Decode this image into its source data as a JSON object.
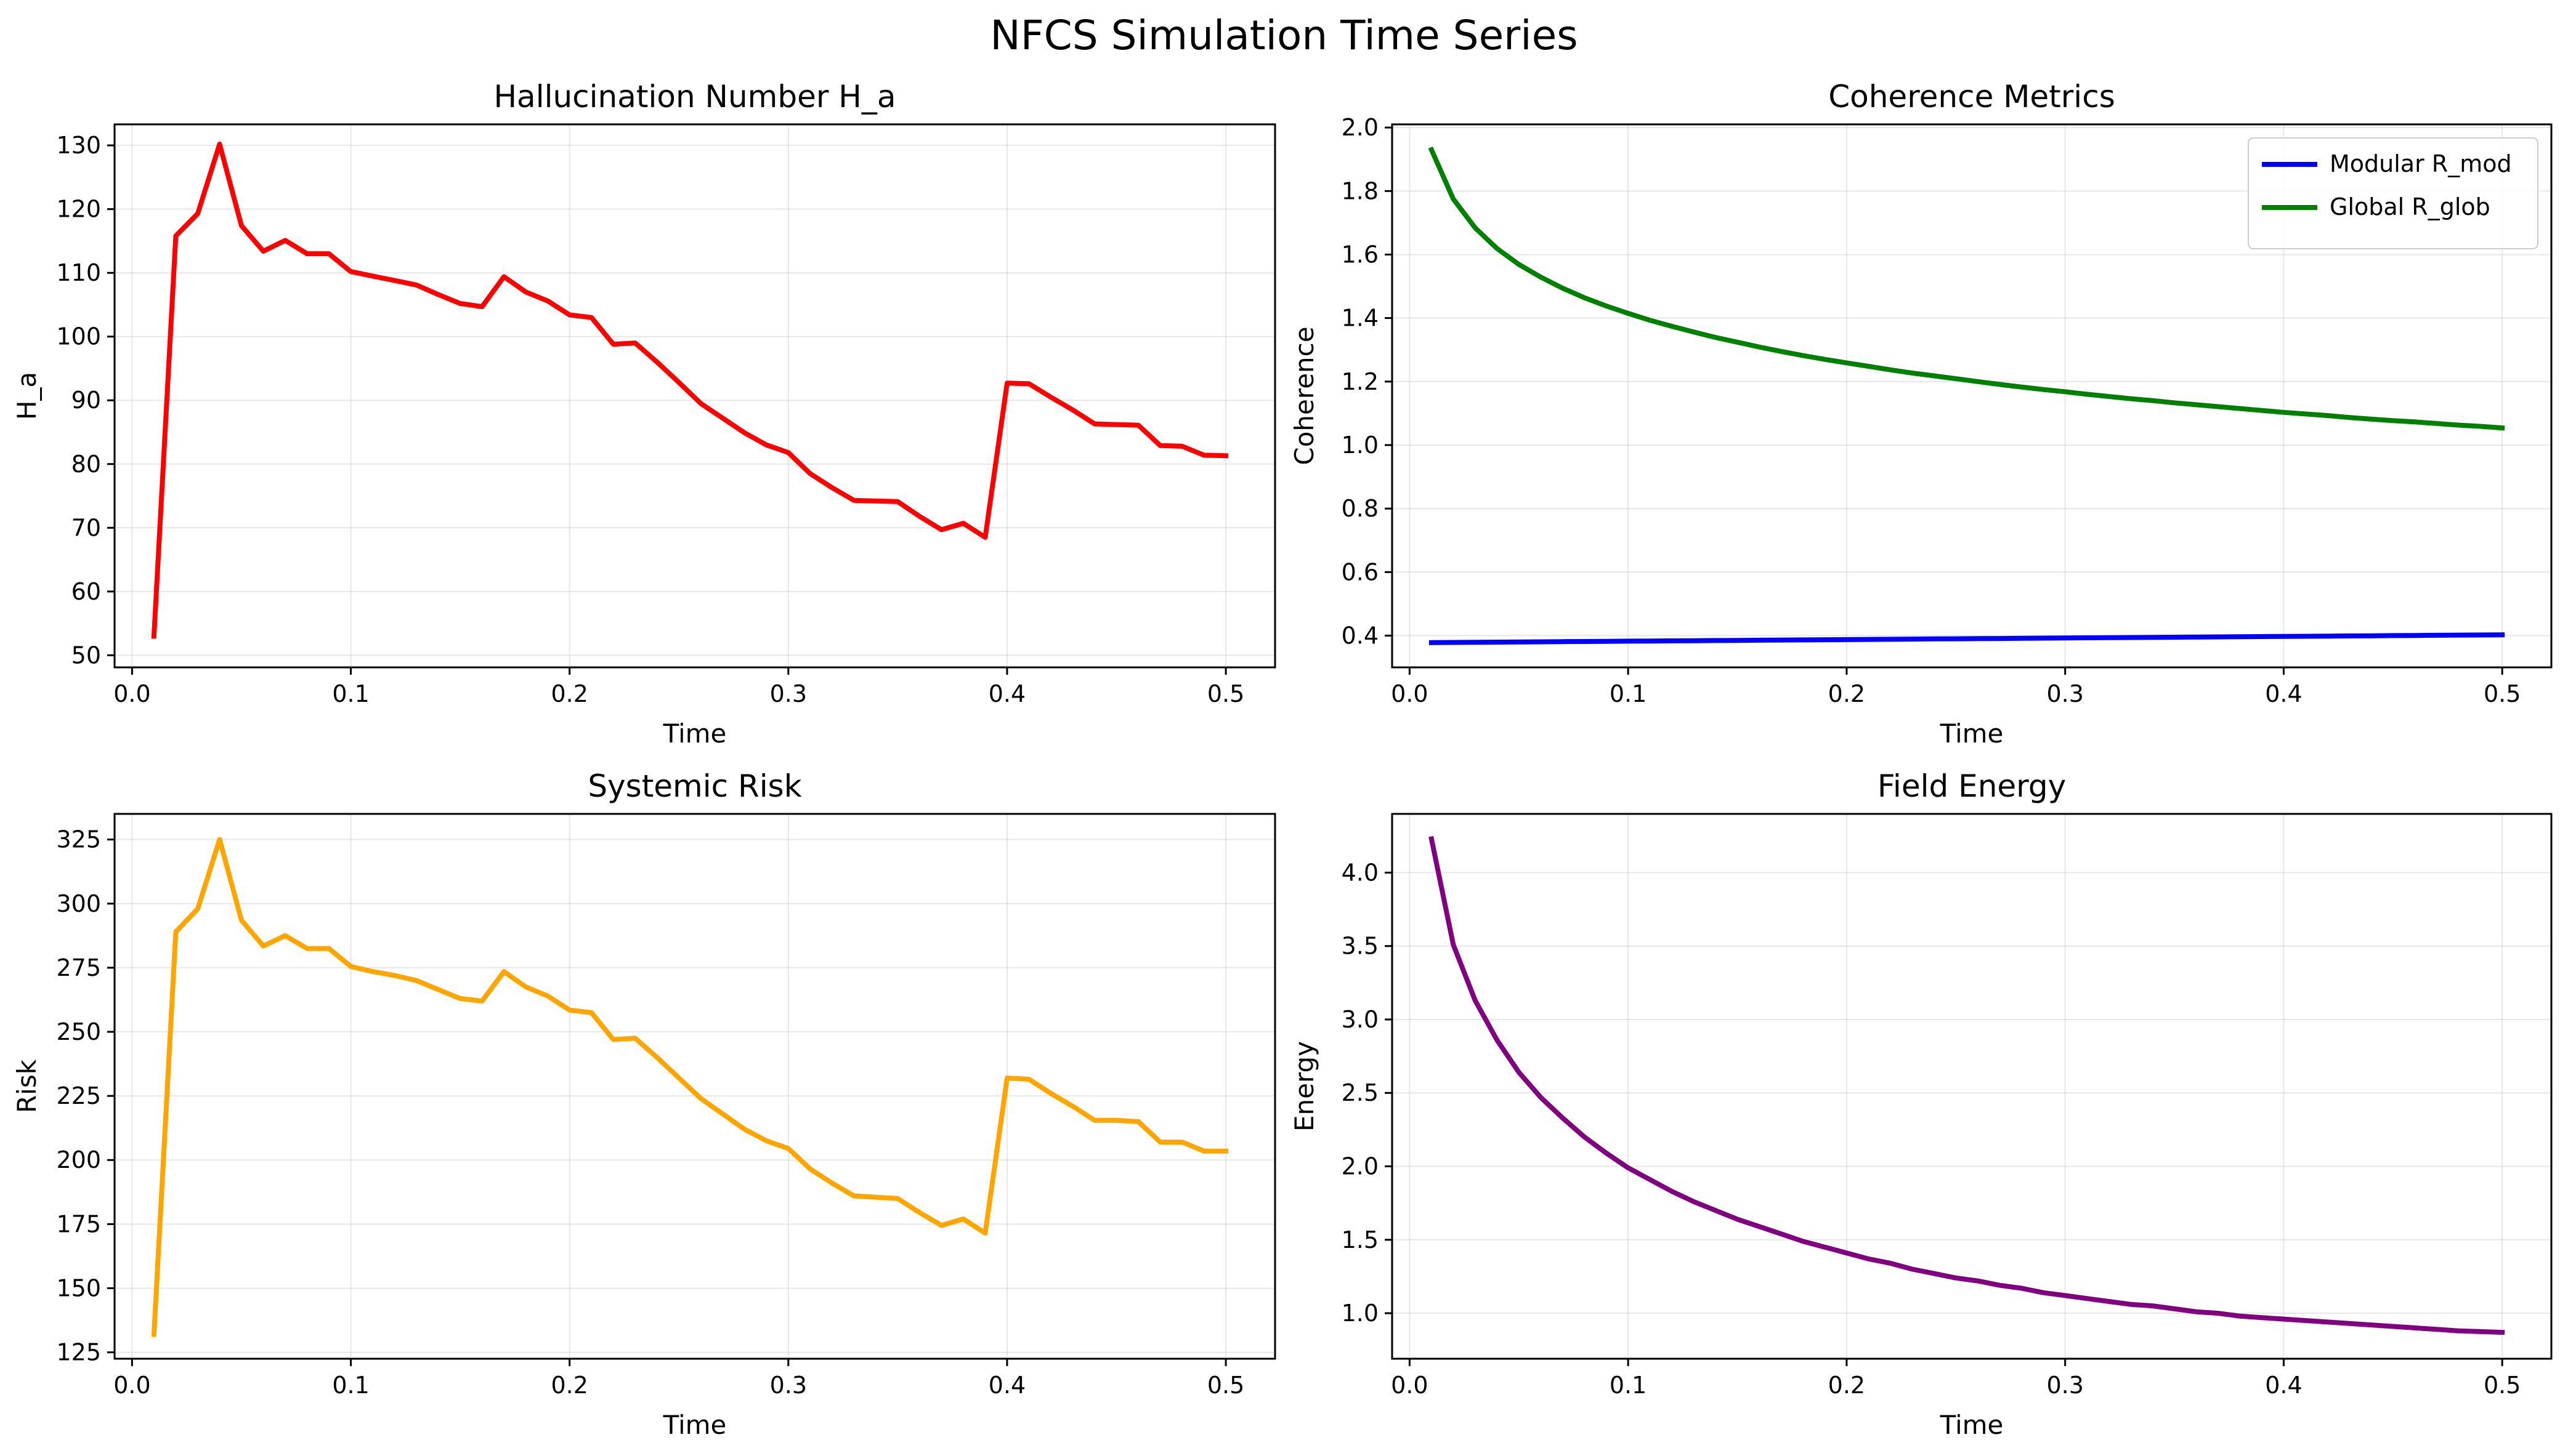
{
  "figure": {
    "title": "NFCS Simulation Time Series"
  },
  "chart_data": [
    {
      "type": "line",
      "title": "Hallucination Number H_a",
      "xlabel": "Time",
      "ylabel": "H_a",
      "xlim": [
        -0.008,
        0.5225
      ],
      "ylim": [
        48.1,
        133.3
      ],
      "xticks": [
        0.0,
        0.1,
        0.2,
        0.3,
        0.4,
        0.5
      ],
      "xtick_labels": [
        "0.0",
        "0.1",
        "0.2",
        "0.3",
        "0.4",
        "0.5"
      ],
      "yticks": [
        50,
        60,
        70,
        80,
        90,
        100,
        110,
        120,
        130
      ],
      "ytick_labels": [
        "50",
        "60",
        "70",
        "80",
        "90",
        "100",
        "110",
        "120",
        "130"
      ],
      "grid": true,
      "series": [
        {
          "color": "#ff0000",
          "x": [
            0.01,
            0.02,
            0.03,
            0.04,
            0.05,
            0.06,
            0.07,
            0.08,
            0.09,
            0.1,
            0.11,
            0.12,
            0.13,
            0.14,
            0.15,
            0.16,
            0.17,
            0.18,
            0.19,
            0.2,
            0.21,
            0.22,
            0.23,
            0.24,
            0.25,
            0.26,
            0.27,
            0.28,
            0.29,
            0.3,
            0.31,
            0.32,
            0.33,
            0.34,
            0.35,
            0.36,
            0.37,
            0.38,
            0.39,
            0.4,
            0.41,
            0.42,
            0.43,
            0.44,
            0.45,
            0.46,
            0.47,
            0.48,
            0.49,
            0.5
          ],
          "y": [
            53.0,
            115.8,
            119.3,
            130.2,
            117.4,
            113.4,
            115.1,
            113.0,
            113.0,
            110.2,
            109.5,
            108.8,
            108.1,
            106.6,
            105.2,
            104.7,
            109.4,
            107.0,
            105.6,
            103.4,
            103.0,
            98.8,
            99.0,
            96.0,
            92.8,
            89.5,
            87.2,
            84.9,
            83.0,
            81.8,
            78.5,
            76.3,
            74.3,
            74.2,
            74.1,
            71.8,
            69.7,
            70.7,
            68.5,
            92.7,
            92.6,
            90.5,
            88.5,
            86.3,
            86.2,
            86.1,
            82.9,
            82.8,
            81.4,
            81.3
          ]
        }
      ]
    },
    {
      "type": "line",
      "title": "Coherence Metrics",
      "xlabel": "Time",
      "ylabel": "Coherence",
      "xlim": [
        -0.008,
        0.5225
      ],
      "ylim": [
        0.3,
        2.01
      ],
      "xticks": [
        0.0,
        0.1,
        0.2,
        0.3,
        0.4,
        0.5
      ],
      "xtick_labels": [
        "0.0",
        "0.1",
        "0.2",
        "0.3",
        "0.4",
        "0.5"
      ],
      "yticks": [
        0.4,
        0.6,
        0.8,
        1.0,
        1.2,
        1.4,
        1.6,
        1.8,
        2.0
      ],
      "ytick_labels": [
        "0.4",
        "0.6",
        "0.8",
        "1.0",
        "1.2",
        "1.4",
        "1.6",
        "1.8",
        "2.0"
      ],
      "grid": true,
      "legend": "top-right",
      "series": [
        {
          "name": "Modular R_mod",
          "color": "#0000ff",
          "x": [
            0.01,
            0.02,
            0.03,
            0.04,
            0.05,
            0.06,
            0.07,
            0.08,
            0.09,
            0.1,
            0.11,
            0.12,
            0.13,
            0.14,
            0.15,
            0.16,
            0.17,
            0.18,
            0.19,
            0.2,
            0.21,
            0.22,
            0.23,
            0.24,
            0.25,
            0.26,
            0.27,
            0.28,
            0.29,
            0.3,
            0.31,
            0.32,
            0.33,
            0.34,
            0.35,
            0.36,
            0.37,
            0.38,
            0.39,
            0.4,
            0.41,
            0.42,
            0.43,
            0.44,
            0.45,
            0.46,
            0.47,
            0.48,
            0.49,
            0.5
          ],
          "y": [
            0.378,
            0.3785,
            0.379,
            0.3795,
            0.38,
            0.3805,
            0.381,
            0.3815,
            0.382,
            0.3825,
            0.383,
            0.3835,
            0.384,
            0.3845,
            0.385,
            0.3855,
            0.386,
            0.3865,
            0.387,
            0.3875,
            0.388,
            0.3885,
            0.389,
            0.3895,
            0.39,
            0.3905,
            0.391,
            0.3915,
            0.392,
            0.3925,
            0.393,
            0.3935,
            0.394,
            0.3945,
            0.395,
            0.3955,
            0.396,
            0.3965,
            0.397,
            0.3975,
            0.398,
            0.3985,
            0.399,
            0.3995,
            0.4,
            0.4005,
            0.401,
            0.4015,
            0.402,
            0.4025
          ]
        },
        {
          "name": "Global R_glob",
          "color": "#008000",
          "x": [
            0.01,
            0.02,
            0.03,
            0.04,
            0.05,
            0.06,
            0.07,
            0.08,
            0.09,
            0.1,
            0.11,
            0.12,
            0.13,
            0.14,
            0.15,
            0.16,
            0.17,
            0.18,
            0.19,
            0.2,
            0.21,
            0.22,
            0.23,
            0.24,
            0.25,
            0.26,
            0.27,
            0.28,
            0.29,
            0.3,
            0.31,
            0.32,
            0.33,
            0.34,
            0.35,
            0.36,
            0.37,
            0.38,
            0.39,
            0.4,
            0.41,
            0.42,
            0.43,
            0.44,
            0.45,
            0.46,
            0.47,
            0.48,
            0.49,
            0.5
          ],
          "y": [
            1.93,
            1.775,
            1.684,
            1.619,
            1.569,
            1.529,
            1.494,
            1.464,
            1.438,
            1.415,
            1.393,
            1.374,
            1.356,
            1.339,
            1.324,
            1.309,
            1.295,
            1.282,
            1.27,
            1.259,
            1.248,
            1.237,
            1.227,
            1.218,
            1.209,
            1.2,
            1.191,
            1.183,
            1.175,
            1.168,
            1.16,
            1.153,
            1.146,
            1.14,
            1.133,
            1.127,
            1.121,
            1.115,
            1.109,
            1.103,
            1.098,
            1.093,
            1.087,
            1.082,
            1.077,
            1.073,
            1.068,
            1.063,
            1.059,
            1.054
          ]
        }
      ]
    },
    {
      "type": "line",
      "title": "Systemic Risk",
      "xlabel": "Time",
      "ylabel": "Risk",
      "xlim": [
        -0.008,
        0.5225
      ],
      "ylim": [
        122.5,
        335.0
      ],
      "xticks": [
        0.0,
        0.1,
        0.2,
        0.3,
        0.4,
        0.5
      ],
      "xtick_labels": [
        "0.0",
        "0.1",
        "0.2",
        "0.3",
        "0.4",
        "0.5"
      ],
      "yticks": [
        125,
        150,
        175,
        200,
        225,
        250,
        275,
        300,
        325
      ],
      "ytick_labels": [
        "125",
        "150",
        "175",
        "200",
        "225",
        "250",
        "275",
        "300",
        "325"
      ],
      "grid": true,
      "series": [
        {
          "color": "#ffa500",
          "x": [
            0.01,
            0.02,
            0.03,
            0.04,
            0.05,
            0.06,
            0.07,
            0.08,
            0.09,
            0.1,
            0.11,
            0.12,
            0.13,
            0.14,
            0.15,
            0.16,
            0.17,
            0.18,
            0.19,
            0.2,
            0.21,
            0.22,
            0.23,
            0.24,
            0.25,
            0.26,
            0.27,
            0.28,
            0.29,
            0.3,
            0.31,
            0.32,
            0.33,
            0.34,
            0.35,
            0.36,
            0.37,
            0.38,
            0.39,
            0.4,
            0.41,
            0.42,
            0.43,
            0.44,
            0.45,
            0.46,
            0.47,
            0.48,
            0.49,
            0.5
          ],
          "y": [
            132.0,
            289.0,
            298.0,
            325.0,
            293.5,
            283.5,
            287.5,
            282.5,
            282.5,
            275.5,
            273.5,
            272.0,
            270.0,
            266.5,
            263.0,
            262.0,
            273.5,
            267.5,
            264.0,
            258.5,
            257.5,
            247.0,
            247.5,
            240.0,
            232.0,
            224.0,
            218.0,
            212.0,
            207.5,
            204.5,
            196.5,
            191.0,
            186.0,
            185.5,
            185.0,
            179.5,
            174.5,
            177.0,
            171.5,
            232.0,
            231.5,
            226.0,
            221.0,
            215.5,
            215.5,
            215.0,
            207.0,
            207.0,
            203.5,
            203.5
          ]
        }
      ]
    },
    {
      "type": "line",
      "title": "Field Energy",
      "xlabel": "Time",
      "ylabel": "Energy",
      "xlim": [
        -0.008,
        0.5225
      ],
      "ylim": [
        0.69,
        4.4
      ],
      "xticks": [
        0.0,
        0.1,
        0.2,
        0.3,
        0.4,
        0.5
      ],
      "xtick_labels": [
        "0.0",
        "0.1",
        "0.2",
        "0.3",
        "0.4",
        "0.5"
      ],
      "yticks": [
        1.0,
        1.5,
        2.0,
        2.5,
        3.0,
        3.5,
        4.0
      ],
      "ytick_labels": [
        "1.0",
        "1.5",
        "2.0",
        "2.5",
        "3.0",
        "3.5",
        "4.0"
      ],
      "grid": true,
      "series": [
        {
          "color": "#800080",
          "x": [
            0.01,
            0.02,
            0.03,
            0.04,
            0.05,
            0.06,
            0.07,
            0.08,
            0.09,
            0.1,
            0.11,
            0.12,
            0.13,
            0.14,
            0.15,
            0.16,
            0.17,
            0.18,
            0.19,
            0.2,
            0.21,
            0.22,
            0.23,
            0.24,
            0.25,
            0.26,
            0.27,
            0.28,
            0.29,
            0.3,
            0.31,
            0.32,
            0.33,
            0.34,
            0.35,
            0.36,
            0.37,
            0.38,
            0.39,
            0.4,
            0.41,
            0.42,
            0.43,
            0.44,
            0.45,
            0.46,
            0.47,
            0.48,
            0.49,
            0.5
          ],
          "y": [
            4.23,
            3.51,
            3.13,
            2.86,
            2.64,
            2.47,
            2.33,
            2.2,
            2.09,
            1.99,
            1.91,
            1.83,
            1.76,
            1.7,
            1.64,
            1.59,
            1.54,
            1.49,
            1.45,
            1.41,
            1.37,
            1.34,
            1.3,
            1.27,
            1.24,
            1.22,
            1.19,
            1.17,
            1.14,
            1.12,
            1.1,
            1.08,
            1.06,
            1.05,
            1.03,
            1.01,
            1.0,
            0.98,
            0.97,
            0.96,
            0.95,
            0.94,
            0.93,
            0.92,
            0.91,
            0.9,
            0.89,
            0.88,
            0.875,
            0.87
          ]
        }
      ]
    }
  ]
}
